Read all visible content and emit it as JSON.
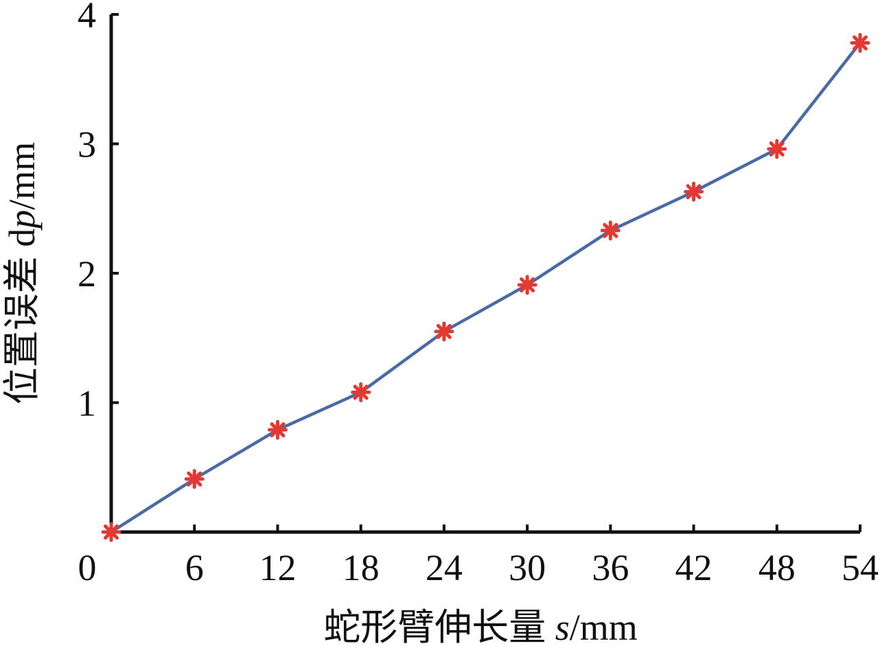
{
  "colors": {
    "line": "#4a6aa5",
    "marker": "#e23a32",
    "axis": "#111111"
  },
  "chart_data": {
    "type": "line",
    "title": "",
    "xlabel": {
      "prefix": "蛇形臂伸长量 ",
      "var": "s",
      "unit": "/mm"
    },
    "ylabel": {
      "prefix": "位置误差 d",
      "var": "p",
      "unit": "/mm"
    },
    "xlim": [
      0,
      54
    ],
    "ylim": [
      0,
      4
    ],
    "x_ticks": [
      0,
      6,
      12,
      18,
      24,
      30,
      36,
      42,
      48,
      54
    ],
    "x_tick_labels": [
      "0",
      "6",
      "12",
      "18",
      "24",
      "30",
      "36",
      "42",
      "48",
      "54"
    ],
    "y_ticks": [
      1,
      2,
      3,
      4
    ],
    "y_tick_labels": [
      "1",
      "2",
      "3",
      "4"
    ],
    "grid": false,
    "series": [
      {
        "marker": "asterisk",
        "x": [
          0,
          6,
          12,
          18,
          24,
          30,
          36,
          42,
          48,
          54
        ],
        "y": [
          0,
          0.41,
          0.79,
          1.08,
          1.55,
          1.91,
          2.33,
          2.63,
          2.96,
          3.78
        ]
      }
    ]
  }
}
